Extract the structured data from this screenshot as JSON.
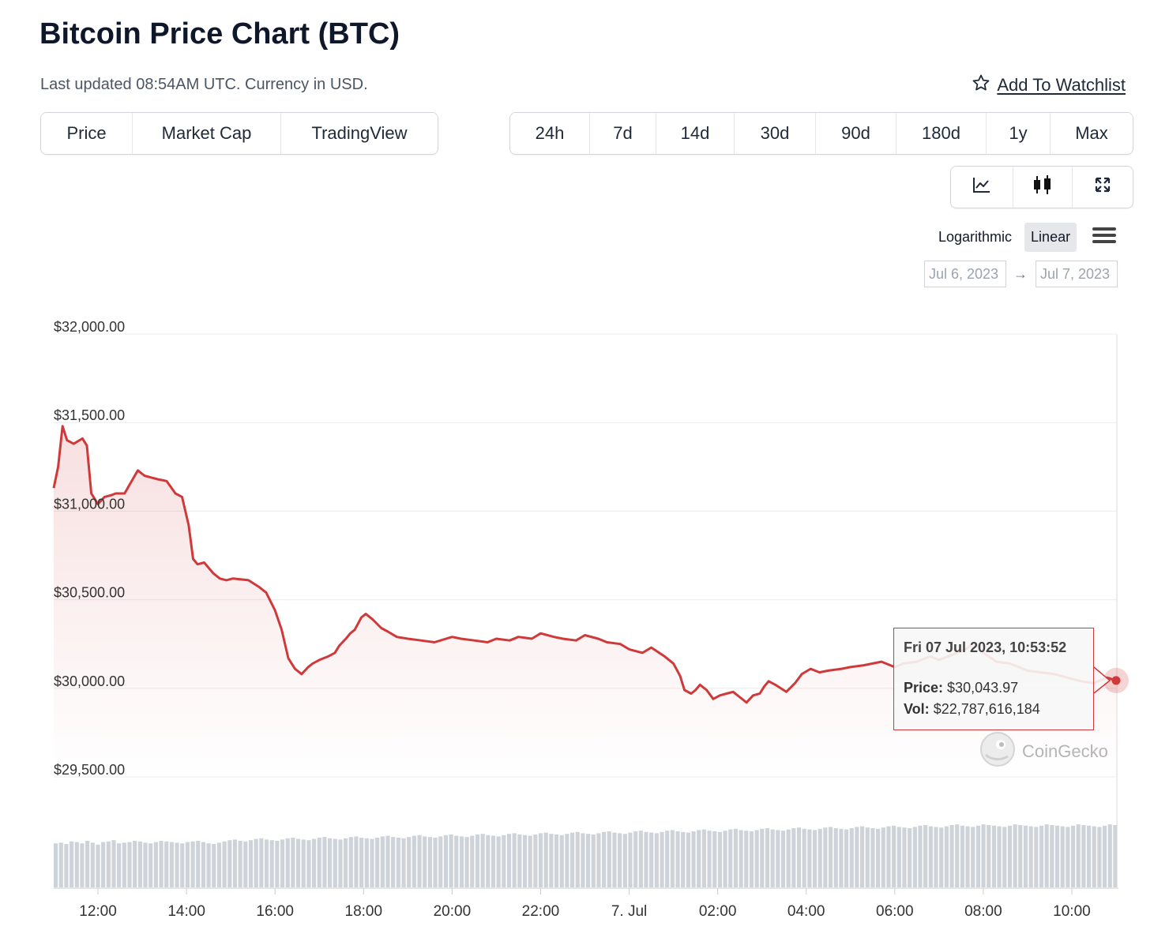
{
  "header": {
    "title": "Bitcoin Price Chart (BTC)",
    "subtitle": "Last updated 08:54AM UTC. Currency in USD.",
    "watchlist_label": "Add To Watchlist"
  },
  "view_tabs": [
    {
      "label": "Price",
      "active": true
    },
    {
      "label": "Market Cap",
      "active": false
    },
    {
      "label": "TradingView",
      "active": false
    }
  ],
  "range_tabs": [
    {
      "label": "24h",
      "active": true
    },
    {
      "label": "7d",
      "active": false
    },
    {
      "label": "14d",
      "active": false
    },
    {
      "label": "30d",
      "active": false
    },
    {
      "label": "90d",
      "active": false
    },
    {
      "label": "180d",
      "active": false
    },
    {
      "label": "1y",
      "active": false
    },
    {
      "label": "Max",
      "active": false
    }
  ],
  "chart_type_buttons": [
    {
      "icon": "line-chart-icon",
      "active": true
    },
    {
      "icon": "candlestick-icon",
      "active": false
    },
    {
      "icon": "expand-icon",
      "active": false
    }
  ],
  "scale": {
    "logarithmic": "Logarithmic",
    "linear": "Linear",
    "active": "Linear"
  },
  "date_range": {
    "from": "Jul 6, 2023",
    "arrow": "→",
    "to": "Jul 7, 2023"
  },
  "tooltip": {
    "date": "Fri 07 Jul 2023, 10:53:52",
    "price_label": "Price:",
    "price_value": "$30,043.97",
    "vol_label": "Vol:",
    "vol_value": "$22,787,616,184"
  },
  "watermark": "CoinGecko",
  "colors": {
    "line": "#d0393a",
    "volume": "#ced3da",
    "grid": "#ececec"
  },
  "chart_data": {
    "type": "area",
    "title": "Bitcoin Price Chart (BTC)",
    "xlabel": "",
    "ylabel": "",
    "ylim": [
      29400,
      32000
    ],
    "xlim": [
      11.0,
      35.0
    ],
    "y_ticks": [
      32000,
      31500,
      31000,
      30500,
      30000,
      29500
    ],
    "y_tick_labels": [
      "$32,000.00",
      "$31,500.00",
      "$31,000.00",
      "$30,500.00",
      "$30,000.00",
      "$29,500.00"
    ],
    "x_ticks": [
      12,
      14,
      16,
      18,
      20,
      22,
      24,
      26,
      28,
      30,
      32,
      34
    ],
    "x_tick_labels": [
      "12:00",
      "14:00",
      "16:00",
      "18:00",
      "20:00",
      "22:00",
      "7. Jul",
      "02:00",
      "04:00",
      "06:00",
      "08:00",
      "10:00"
    ],
    "series": [
      {
        "name": "Price",
        "x": [
          11.0,
          11.1,
          11.2,
          11.3,
          11.45,
          11.65,
          11.75,
          11.85,
          12.0,
          12.15,
          12.3,
          12.4,
          12.6,
          12.9,
          13.05,
          13.2,
          13.35,
          13.55,
          13.75,
          13.9,
          14.05,
          14.15,
          14.25,
          14.4,
          14.6,
          14.75,
          14.9,
          15.05,
          15.4,
          15.65,
          15.8,
          16.0,
          16.15,
          16.3,
          16.45,
          16.6,
          16.75,
          16.85,
          17.0,
          17.2,
          17.35,
          17.45,
          17.6,
          17.7,
          17.8,
          17.95,
          18.05,
          18.2,
          18.4,
          18.55,
          18.75,
          19.0,
          19.3,
          19.6,
          20.0,
          20.2,
          20.5,
          20.8,
          21.0,
          21.3,
          21.5,
          21.8,
          22.0,
          22.3,
          22.5,
          22.8,
          23.0,
          23.3,
          23.5,
          23.8,
          24.0,
          24.3,
          24.5,
          24.8,
          25.0,
          25.15,
          25.25,
          25.4,
          25.5,
          25.6,
          25.75,
          25.9,
          26.05,
          26.2,
          26.35,
          26.5,
          26.65,
          26.8,
          26.95,
          27.05,
          27.15,
          27.3,
          27.55,
          27.75,
          27.9,
          28.1,
          28.3,
          28.5,
          28.8,
          29.0,
          29.3,
          29.5,
          29.7,
          30.0,
          30.2,
          30.5,
          30.8,
          31.0,
          31.3,
          31.6,
          31.8,
          32.0,
          32.3,
          32.6,
          32.8,
          33.0,
          33.3,
          33.6,
          33.9,
          34.2,
          34.5,
          34.8,
          35.0
        ],
        "y": [
          31130,
          31250,
          31480,
          31400,
          31380,
          31410,
          31370,
          31100,
          31040,
          31080,
          31090,
          31100,
          31100,
          31230,
          31200,
          31190,
          31180,
          31170,
          31100,
          31080,
          30920,
          30730,
          30700,
          30710,
          30650,
          30620,
          30610,
          30620,
          30610,
          30570,
          30540,
          30440,
          30330,
          30170,
          30110,
          30080,
          30120,
          30140,
          30160,
          30180,
          30200,
          30240,
          30280,
          30310,
          30330,
          30400,
          30420,
          30390,
          30340,
          30320,
          30290,
          30280,
          30270,
          30260,
          30290,
          30280,
          30270,
          30260,
          30280,
          30270,
          30290,
          30280,
          30310,
          30290,
          30280,
          30270,
          30300,
          30280,
          30260,
          30250,
          30220,
          30200,
          30230,
          30180,
          30140,
          30070,
          29990,
          29970,
          29990,
          30020,
          29990,
          29940,
          29960,
          29970,
          29980,
          29950,
          29920,
          29960,
          29970,
          30010,
          30040,
          30020,
          29980,
          30030,
          30080,
          30110,
          30090,
          30100,
          30110,
          30120,
          30130,
          30140,
          30150,
          30120,
          30140,
          30150,
          30180,
          30160,
          30190,
          30220,
          30260,
          30200,
          30150,
          30140,
          30120,
          30100,
          30090,
          30080,
          30060,
          30040,
          30030,
          30060,
          30044
        ]
      },
      {
        "name": "Volume",
        "values": [
          70,
          71,
          69,
          73,
          72,
          70,
          74,
          71,
          68,
          72,
          73,
          75,
          70,
          71,
          72,
          74,
          73,
          71,
          70,
          72,
          74,
          73,
          72,
          71,
          70,
          72,
          73,
          74,
          72,
          70,
          69,
          71,
          73,
          75,
          76,
          74,
          73,
          75,
          77,
          78,
          76,
          75,
          74,
          76,
          78,
          79,
          77,
          76,
          75,
          77,
          79,
          80,
          78,
          77,
          76,
          78,
          80,
          81,
          79,
          78,
          77,
          79,
          81,
          82,
          80,
          79,
          78,
          80,
          82,
          83,
          81,
          80,
          79,
          81,
          83,
          84,
          82,
          81,
          80,
          82,
          84,
          85,
          83,
          82,
          81,
          83,
          85,
          86,
          84,
          83,
          82,
          84,
          86,
          87,
          85,
          84,
          83,
          85,
          87,
          88,
          86,
          85,
          84,
          86,
          88,
          89,
          87,
          86,
          85,
          87,
          89,
          90,
          88,
          87,
          86,
          88,
          90,
          91,
          89,
          88,
          87,
          89,
          91,
          92,
          90,
          89,
          88,
          90,
          92,
          93,
          91,
          90,
          89,
          91,
          93,
          94,
          92,
          91,
          90,
          92,
          94,
          95,
          93,
          92,
          91,
          93,
          95,
          96,
          94,
          93,
          92,
          94,
          96,
          97,
          95,
          94,
          93,
          95,
          97,
          98,
          96,
          95,
          94,
          96,
          98,
          99,
          97,
          96,
          95,
          97,
          99,
          100,
          98,
          97,
          96,
          98,
          100,
          99,
          98,
          97,
          96,
          98,
          100,
          99,
          98,
          97,
          96,
          98,
          100,
          99,
          98,
          97,
          96,
          98,
          100,
          99,
          98,
          97,
          96,
          98,
          100,
          99
        ]
      }
    ]
  }
}
